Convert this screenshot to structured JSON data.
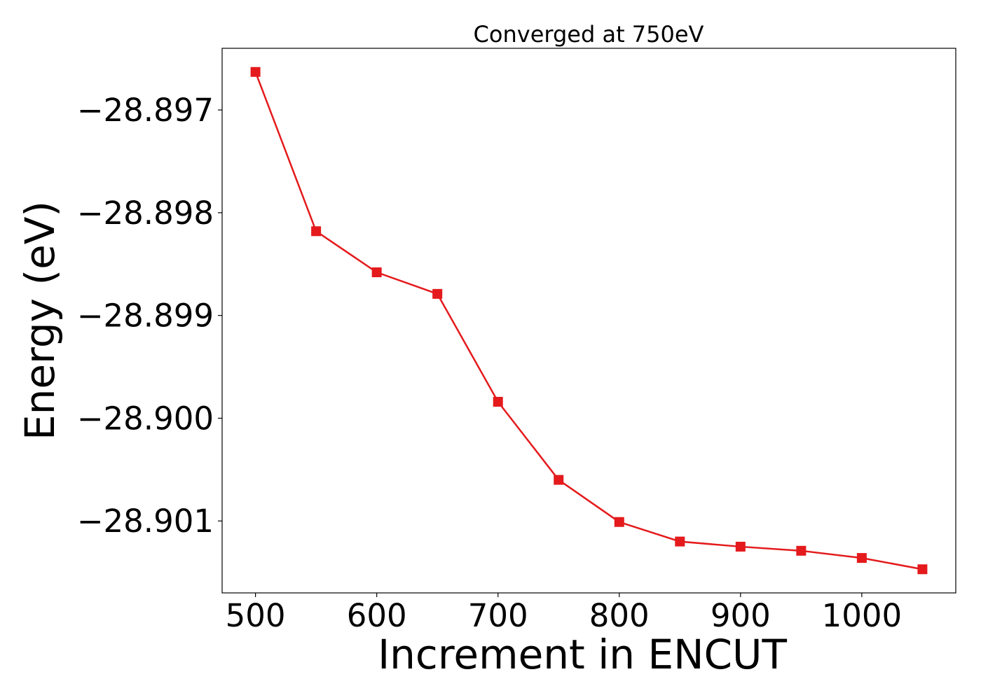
{
  "chart_data": {
    "type": "line",
    "title": "Converged at 750eV",
    "xlabel": "Increment in ENCUT",
    "ylabel": "Energy (eV)",
    "x": [
      500,
      550,
      600,
      650,
      700,
      750,
      800,
      850,
      900,
      950,
      1000,
      1050
    ],
    "series": [
      {
        "values": [
          -28.89663,
          -28.89818,
          -28.89858,
          -28.89879,
          -28.89984,
          -28.9006,
          -28.90101,
          -28.9012,
          -28.90125,
          -28.90129,
          -28.90136,
          -28.90147
        ],
        "color": "#e41a1c",
        "marker": "square"
      }
    ],
    "xticks": [
      500,
      600,
      700,
      800,
      900,
      1000
    ],
    "xtick_labels": [
      "500",
      "600",
      "700",
      "800",
      "900",
      "1000"
    ],
    "yticks": [
      -28.897,
      -28.898,
      -28.899,
      -28.9,
      -28.901
    ],
    "ytick_labels": [
      "−28.897",
      "−28.898",
      "−28.899",
      "−28.900",
      "−28.901"
    ],
    "xlim": [
      472.5,
      1077.5
    ],
    "ylim": [
      -28.9017,
      -28.8964
    ],
    "grid": false,
    "legend": "none"
  }
}
